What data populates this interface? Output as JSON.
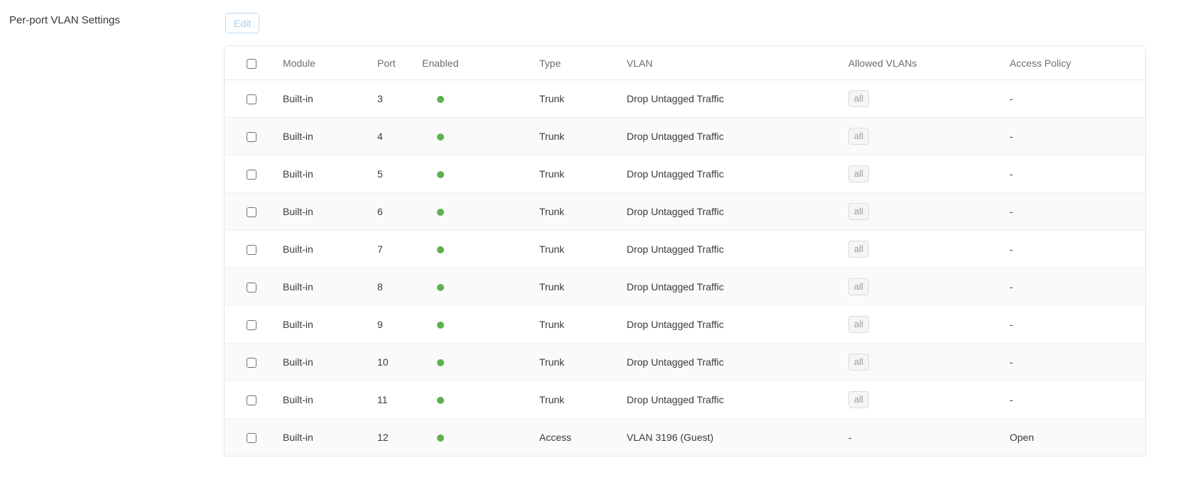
{
  "header": {
    "title": "Per-port VLAN Settings",
    "edit_label": "Edit"
  },
  "table": {
    "columns": [
      "Module",
      "Port",
      "Enabled",
      "Type",
      "VLAN",
      "Allowed VLANs",
      "Access Policy"
    ],
    "rows": [
      {
        "module": "Built-in",
        "port": "3",
        "enabled": true,
        "type": "Trunk",
        "vlan": "Drop Untagged Traffic",
        "allowed_vlans": "all",
        "allowed_badge": true,
        "access_policy": "-"
      },
      {
        "module": "Built-in",
        "port": "4",
        "enabled": true,
        "type": "Trunk",
        "vlan": "Drop Untagged Traffic",
        "allowed_vlans": "all",
        "allowed_badge": true,
        "access_policy": "-"
      },
      {
        "module": "Built-in",
        "port": "5",
        "enabled": true,
        "type": "Trunk",
        "vlan": "Drop Untagged Traffic",
        "allowed_vlans": "all",
        "allowed_badge": true,
        "access_policy": "-"
      },
      {
        "module": "Built-in",
        "port": "6",
        "enabled": true,
        "type": "Trunk",
        "vlan": "Drop Untagged Traffic",
        "allowed_vlans": "all",
        "allowed_badge": true,
        "access_policy": "-"
      },
      {
        "module": "Built-in",
        "port": "7",
        "enabled": true,
        "type": "Trunk",
        "vlan": "Drop Untagged Traffic",
        "allowed_vlans": "all",
        "allowed_badge": true,
        "access_policy": "-"
      },
      {
        "module": "Built-in",
        "port": "8",
        "enabled": true,
        "type": "Trunk",
        "vlan": "Drop Untagged Traffic",
        "allowed_vlans": "all",
        "allowed_badge": true,
        "access_policy": "-"
      },
      {
        "module": "Built-in",
        "port": "9",
        "enabled": true,
        "type": "Trunk",
        "vlan": "Drop Untagged Traffic",
        "allowed_vlans": "all",
        "allowed_badge": true,
        "access_policy": "-"
      },
      {
        "module": "Built-in",
        "port": "10",
        "enabled": true,
        "type": "Trunk",
        "vlan": "Drop Untagged Traffic",
        "allowed_vlans": "all",
        "allowed_badge": true,
        "access_policy": "-"
      },
      {
        "module": "Built-in",
        "port": "11",
        "enabled": true,
        "type": "Trunk",
        "vlan": "Drop Untagged Traffic",
        "allowed_vlans": "all",
        "allowed_badge": true,
        "access_policy": "-"
      },
      {
        "module": "Built-in",
        "port": "12",
        "enabled": true,
        "type": "Access",
        "vlan": "VLAN 3196 (Guest)",
        "allowed_vlans": "-",
        "allowed_badge": false,
        "access_policy": "Open"
      }
    ]
  },
  "colors": {
    "enabled_dot": "#5cb14c",
    "edit_text": "#a4cbe8",
    "edit_border": "#bcd9ee"
  }
}
